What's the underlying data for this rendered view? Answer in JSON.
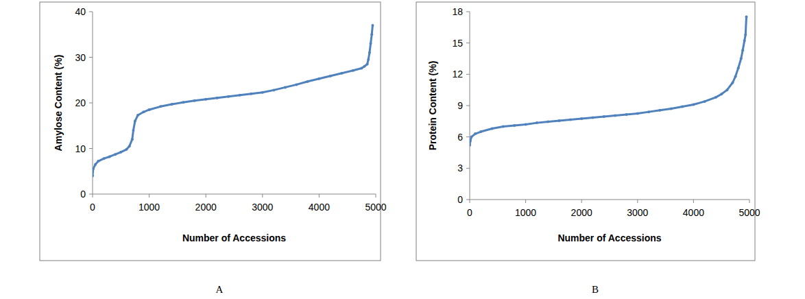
{
  "chart_data": [
    {
      "type": "line",
      "title": "A",
      "x_label": "Number of Accessions",
      "y_label": "Amylose Content (%)",
      "color": "#4f81bd",
      "marker": "circle",
      "grid": false,
      "xlim": [
        0,
        5000
      ],
      "xticks": [
        0,
        1000,
        2000,
        3000,
        4000,
        5000
      ],
      "ylim": [
        0,
        40
      ],
      "yticks": [
        0,
        10,
        20,
        30,
        40
      ],
      "x": [
        0,
        10,
        50,
        100,
        200,
        300,
        400,
        500,
        600,
        650,
        700,
        720,
        750,
        800,
        900,
        1000,
        1200,
        1400,
        1600,
        1800,
        2000,
        2200,
        2400,
        2600,
        2800,
        3000,
        3200,
        3400,
        3600,
        3800,
        4000,
        4200,
        4400,
        4600,
        4750,
        4800,
        4850,
        4870,
        4890,
        4910,
        4930,
        4945
      ],
      "values": [
        4,
        5.5,
        6.5,
        7.2,
        7.8,
        8.2,
        8.7,
        9.2,
        9.8,
        10.5,
        12,
        14,
        16,
        17.3,
        18,
        18.5,
        19.2,
        19.7,
        20.1,
        20.5,
        20.8,
        21.1,
        21.4,
        21.7,
        22,
        22.3,
        22.8,
        23.4,
        24,
        24.7,
        25.3,
        25.9,
        26.5,
        27.1,
        27.6,
        28,
        28.5,
        29.5,
        31,
        33,
        35,
        37
      ]
    },
    {
      "type": "line",
      "title": "B",
      "x_label": "Number of Accessions",
      "y_label": "Protein Content (%)",
      "color": "#4f81bd",
      "marker": "circle",
      "grid": false,
      "xlim": [
        0,
        5000
      ],
      "xticks": [
        0,
        1000,
        2000,
        3000,
        4000,
        5000
      ],
      "ylim": [
        0,
        18
      ],
      "yticks": [
        0,
        3,
        6,
        9,
        12,
        15,
        18
      ],
      "x": [
        0,
        10,
        30,
        100,
        200,
        400,
        600,
        800,
        1000,
        1200,
        1400,
        1600,
        1800,
        2000,
        2200,
        2400,
        2600,
        2800,
        3000,
        3200,
        3400,
        3600,
        3800,
        4000,
        4200,
        4400,
        4500,
        4600,
        4700,
        4750,
        4800,
        4850,
        4880,
        4910,
        4930,
        4945
      ],
      "values": [
        5.2,
        5.6,
        6.0,
        6.3,
        6.5,
        6.8,
        7.0,
        7.1,
        7.2,
        7.35,
        7.45,
        7.55,
        7.65,
        7.75,
        7.85,
        7.95,
        8.05,
        8.15,
        8.25,
        8.4,
        8.55,
        8.7,
        8.9,
        9.1,
        9.4,
        9.8,
        10.1,
        10.5,
        11.2,
        11.8,
        12.6,
        13.5,
        14.3,
        15.2,
        15.8,
        17.5
      ]
    }
  ]
}
